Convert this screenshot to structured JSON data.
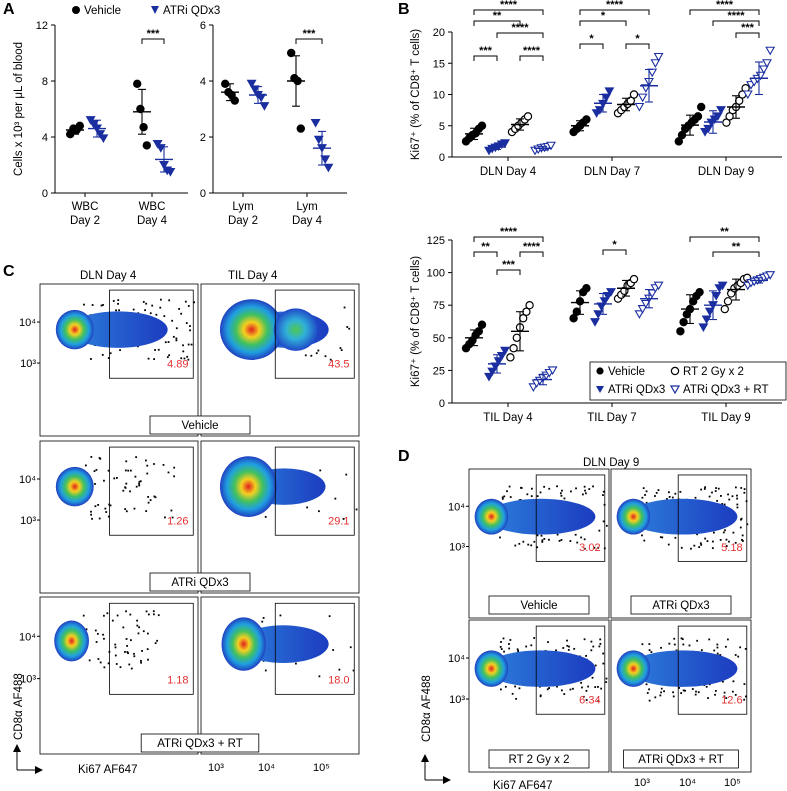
{
  "colors": {
    "vehicle": "#000000",
    "atri": "#1a2ea0",
    "rt": "#000000",
    "combo": "#1a2ea0",
    "gate_value": "#e53030"
  },
  "panel_labels": {
    "a": "A",
    "b": "B",
    "c": "C",
    "d": "D"
  },
  "legend_a": {
    "vehicle": "Vehicle",
    "atri": "ATRi QDx3"
  },
  "legend_b": {
    "vehicle": "Vehicle",
    "rt": "RT 2 Gy x 2",
    "atri": "ATRi QDx3",
    "combo": "ATRi QDx3 + RT"
  },
  "chart_data": [
    {
      "id": "A-left",
      "type": "scatter",
      "ylabel": "Cells x 10³ per μL of blood",
      "ylim": [
        0,
        12
      ],
      "yticks": [
        "0",
        "4",
        "8",
        "12"
      ],
      "categories": [
        [
          "WBC",
          "Day 2"
        ],
        [
          "WBC",
          "Day 4"
        ]
      ],
      "series": [
        {
          "name": "Vehicle",
          "values": [
            [
              4.2,
              4.6,
              4.5,
              4.8
            ],
            [
              7.8,
              6.0,
              4.7,
              3.4
            ]
          ],
          "mean": [
            4.5,
            5.8
          ],
          "sd": [
            0.3,
            1.6
          ]
        },
        {
          "name": "ATRi QDx3",
          "values": [
            [
              5.2,
              4.9,
              4.6,
              4.2,
              3.9
            ],
            [
              3.5,
              3.2,
              2.0,
              1.6,
              1.5
            ]
          ],
          "mean": [
            4.6,
            2.4
          ],
          "sd": [
            0.6,
            0.9
          ]
        }
      ],
      "significance": [
        {
          "label": "***",
          "between": "Day 4 Vehicle vs ATRi"
        }
      ]
    },
    {
      "id": "A-right",
      "type": "scatter",
      "ylabel": "",
      "ylim": [
        0,
        6
      ],
      "yticks": [
        "0",
        "2",
        "4",
        "6"
      ],
      "categories": [
        [
          "Lym",
          "Day 2"
        ],
        [
          "Lym",
          "Day 4"
        ]
      ],
      "series": [
        {
          "name": "Vehicle",
          "values": [
            [
              3.9,
              3.6,
              3.5,
              3.3
            ],
            [
              5.0,
              4.1,
              4.0,
              2.3
            ]
          ],
          "mean": [
            3.6,
            4.0
          ],
          "sd": [
            0.3,
            0.9
          ]
        },
        {
          "name": "ATRi QDx3",
          "values": [
            [
              3.9,
              3.7,
              3.5,
              3.4,
              3.1
            ],
            [
              2.5,
              1.9,
              1.6,
              1.2,
              0.9
            ]
          ],
          "mean": [
            3.5,
            1.6
          ],
          "sd": [
            0.3,
            0.6
          ]
        }
      ],
      "significance": [
        {
          "label": "***",
          "between": "Day 4 Vehicle vs ATRi"
        }
      ]
    },
    {
      "id": "B-top",
      "type": "scatter",
      "ylabel": "Ki67⁺ (% of CD8⁺ T cells)",
      "ylim": [
        0,
        20
      ],
      "yticks": [
        "0",
        "5",
        "10",
        "15",
        "20"
      ],
      "categories": [
        "DLN Day 4",
        "DLN Day 7",
        "DLN Day 9"
      ],
      "series": [
        {
          "name": "Vehicle",
          "values": [
            [
              2.5,
              3.0,
              3.5,
              3.8,
              4.5,
              5.0
            ],
            [
              4.0,
              4.5,
              5.0,
              5.5,
              6.0
            ],
            [
              2.5,
              3.5,
              4.5,
              5.0,
              5.5,
              6.0,
              6.5,
              8.0
            ]
          ],
          "mean": [
            3.7,
            5.0,
            5.1
          ],
          "sd": [
            0.9,
            0.8,
            1.6
          ]
        },
        {
          "name": "ATRi QDx3",
          "values": [
            [
              1.0,
              1.3,
              1.5,
              1.7,
              2.0,
              2.2
            ],
            [
              7.0,
              7.5,
              8.5,
              9.5,
              10.5
            ],
            [
              4.0,
              4.5,
              5.5,
              6.0,
              6.5,
              7.5
            ]
          ],
          "mean": [
            1.6,
            8.6,
            5.6
          ],
          "sd": [
            0.4,
            1.4,
            1.8
          ]
        },
        {
          "name": "RT 2 Gy x 2",
          "values": [
            [
              4.0,
              4.5,
              5.0,
              5.5,
              6.0,
              6.5
            ],
            [
              7.0,
              7.5,
              8.0,
              8.5,
              9.0,
              10.0
            ],
            [
              5.5,
              6.5,
              7.5,
              8.0,
              9.0,
              10.0,
              11.0
            ]
          ],
          "mean": [
            5.2,
            8.4,
            8.0
          ],
          "sd": [
            0.9,
            1.0,
            1.8
          ]
        },
        {
          "name": "ATRi QDx3 + RT",
          "values": [
            [
              1.0,
              1.2,
              1.4,
              1.5,
              1.6,
              1.8
            ],
            [
              8.0,
              9.5,
              11.0,
              12.0,
              13.5,
              15.0,
              16.0
            ],
            [
              10.0,
              11.5,
              12.0,
              12.5,
              13.0,
              14.0,
              15.0,
              17.0
            ]
          ],
          "mean": [
            1.4,
            11.4,
            12.6
          ],
          "sd": [
            0.3,
            2.6,
            2.6
          ]
        }
      ],
      "significance": [
        {
          "label": "****",
          "group": "DLN Day 4"
        },
        {
          "label": "**",
          "group": "DLN Day 4"
        },
        {
          "label": "****",
          "group": "DLN Day 4"
        },
        {
          "label": "***",
          "group": "DLN Day 4"
        },
        {
          "label": "****",
          "group": "DLN Day 4"
        },
        {
          "label": "****",
          "group": "DLN Day 7"
        },
        {
          "label": "*",
          "group": "DLN Day 7"
        },
        {
          "label": "*",
          "group": "DLN Day 7"
        },
        {
          "label": "*",
          "group": "DLN Day 7"
        },
        {
          "label": "****",
          "group": "DLN Day 9"
        },
        {
          "label": "****",
          "group": "DLN Day 9"
        },
        {
          "label": "***",
          "group": "DLN Day 9"
        }
      ]
    },
    {
      "id": "B-bottom",
      "type": "scatter",
      "ylabel": "Ki67⁺ (% of CD8⁺ T cells)",
      "ylim": [
        0,
        125
      ],
      "yticks": [
        "0",
        "25",
        "50",
        "75",
        "100",
        "125"
      ],
      "categories": [
        "TIL Day 4",
        "TIL Day 7",
        "TIL Day 9"
      ],
      "series": [
        {
          "name": "Vehicle",
          "values": [
            [
              42,
              45,
              48,
              52,
              55,
              60
            ],
            [
              65,
              70,
              78,
              85,
              88
            ],
            [
              55,
              62,
              68,
              72,
              78,
              82,
              85
            ]
          ],
          "mean": [
            50,
            77,
            72
          ],
          "sd": [
            6,
            9,
            11
          ]
        },
        {
          "name": "ATRi QDx3",
          "values": [
            [
              20,
              24,
              28,
              32,
              36,
              40
            ],
            [
              62,
              68,
              74,
              78,
              82,
              85
            ],
            [
              58,
              64,
              70,
              75,
              82,
              88,
              90
            ]
          ],
          "mean": [
            30,
            76,
            75
          ],
          "sd": [
            7,
            8,
            11
          ]
        },
        {
          "name": "RT 2 Gy x 2",
          "values": [
            [
              35,
              42,
              50,
              58,
              65,
              70,
              75
            ],
            [
              80,
              83,
              86,
              90,
              92,
              95
            ],
            [
              72,
              78,
              84,
              88,
              90,
              92,
              95,
              96
            ]
          ],
          "mean": [
            55,
            88,
            87
          ],
          "sd": [
            15,
            6,
            8
          ]
        },
        {
          "name": "ATRi QDx3 + RT",
          "values": [
            [
              12,
              15,
              17,
              19,
              21,
              23,
              25
            ],
            [
              68,
              72,
              76,
              80,
              84,
              88,
              90
            ],
            [
              90,
              92,
              93,
              94,
              95,
              96,
              97,
              98
            ]
          ],
          "mean": [
            18,
            80,
            94
          ],
          "sd": [
            4,
            7,
            2
          ]
        }
      ],
      "significance": [
        {
          "label": "****",
          "group": "TIL Day 4"
        },
        {
          "label": "**",
          "group": "TIL Day 4"
        },
        {
          "label": "****",
          "group": "TIL Day 4"
        },
        {
          "label": "***",
          "group": "TIL Day 4"
        },
        {
          "label": "*",
          "group": "TIL Day 7"
        },
        {
          "label": "**",
          "group": "TIL Day 9"
        },
        {
          "label": "**",
          "group": "TIL Day 9"
        }
      ]
    }
  ],
  "flow_c": {
    "col_titles": [
      "DLN Day 4",
      "TIL Day 4"
    ],
    "rows": [
      {
        "label": "Vehicle",
        "gates": [
          "4.89",
          "43.5"
        ]
      },
      {
        "label": "ATRi QDx3",
        "gates": [
          "1.26",
          "29.1"
        ]
      },
      {
        "label": "ATRi QDx3 + RT",
        "gates": [
          "1.18",
          "18.0"
        ]
      }
    ],
    "ylabel": "CD8α AF488",
    "xlabel": "Ki67 AF647",
    "y_ticks": [
      "10⁴",
      "10³"
    ],
    "x_ticks": [
      "10³",
      "10⁴",
      "10⁵"
    ]
  },
  "flow_d": {
    "title": "DLN Day 9",
    "panels": [
      {
        "label": "Vehicle",
        "gate": "3.02"
      },
      {
        "label": "ATRi QDx3",
        "gate": "5.18"
      },
      {
        "label": "RT 2 Gy x 2",
        "gate": "6.34"
      },
      {
        "label": "ATRi QDx3 + RT",
        "gate": "12.6"
      }
    ],
    "ylabel": "CD8α AF488",
    "xlabel": "Ki67 AF647",
    "y_ticks": [
      "10⁴",
      "10³"
    ],
    "x_ticks": [
      "10³",
      "10⁴",
      "10⁵"
    ]
  }
}
